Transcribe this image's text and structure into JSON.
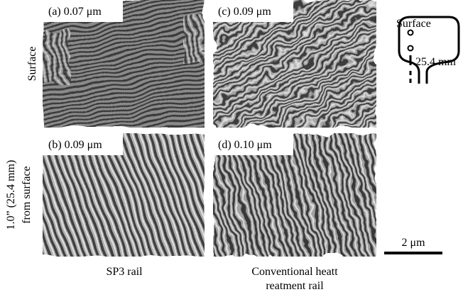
{
  "panels": [
    {
      "label": "(a) 0.07 μm"
    },
    {
      "label": "(c) 0.09 μm"
    },
    {
      "label": "(b) 0.09 μm"
    },
    {
      "label": "(d) 0.10 μm"
    }
  ],
  "row_labels": [
    {
      "lines": [
        "Surface"
      ]
    },
    {
      "lines": [
        "1.0” (25.4 mm)",
        "from surface"
      ]
    }
  ],
  "column_labels": [
    {
      "lines": [
        "SP3 rail"
      ]
    },
    {
      "lines": [
        "Conventional heatt",
        "reatment rail"
      ]
    }
  ],
  "diagram": {
    "surface_label": "Surface",
    "depth_label": "25.4 mm"
  },
  "scale_bar": {
    "label": "2 μm"
  }
}
